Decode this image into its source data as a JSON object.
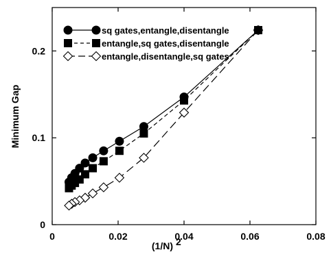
{
  "chart_data": {
    "type": "line",
    "title": "",
    "xlabel": "(1/N)",
    "xlabel_superscript": "2",
    "ylabel": "Minimum Gap",
    "xlim": [
      0,
      0.08
    ],
    "ylim": [
      0,
      0.25
    ],
    "x_ticks": [
      "0",
      "0.02",
      "0.04",
      "0.06",
      "0.08"
    ],
    "y_ticks": [
      "0",
      "0.1",
      "0.2"
    ],
    "grid": false,
    "legend_position": "top-left",
    "series": [
      {
        "name": "sq gates,entangle,disentangle",
        "marker": "filled-circle",
        "line": "solid",
        "x": [
          0.0625,
          0.04,
          0.0278,
          0.0204,
          0.0156,
          0.0123,
          0.01,
          0.0083,
          0.0069,
          0.0059,
          0.0051
        ],
        "y": [
          0.224,
          0.147,
          0.113,
          0.096,
          0.085,
          0.077,
          0.071,
          0.065,
          0.059,
          0.054,
          0.049
        ]
      },
      {
        "name": "entangle,sq gates,disentangle",
        "marker": "filled-square",
        "line": "short-dash",
        "x": [
          0.0625,
          0.04,
          0.0278,
          0.0204,
          0.0156,
          0.0123,
          0.01,
          0.0083,
          0.0069,
          0.0059,
          0.0051
        ],
        "y": [
          0.224,
          0.143,
          0.105,
          0.085,
          0.073,
          0.065,
          0.058,
          0.052,
          0.048,
          0.045,
          0.042
        ]
      },
      {
        "name": "entangle,disentangle,sq gates",
        "marker": "open-diamond",
        "line": "long-dash",
        "x": [
          0.0625,
          0.04,
          0.0278,
          0.0204,
          0.0156,
          0.0123,
          0.01,
          0.0083,
          0.0069,
          0.0059,
          0.0051
        ],
        "y": [
          0.224,
          0.129,
          0.077,
          0.054,
          0.043,
          0.036,
          0.031,
          0.028,
          0.026,
          0.024,
          0.022
        ]
      }
    ]
  }
}
